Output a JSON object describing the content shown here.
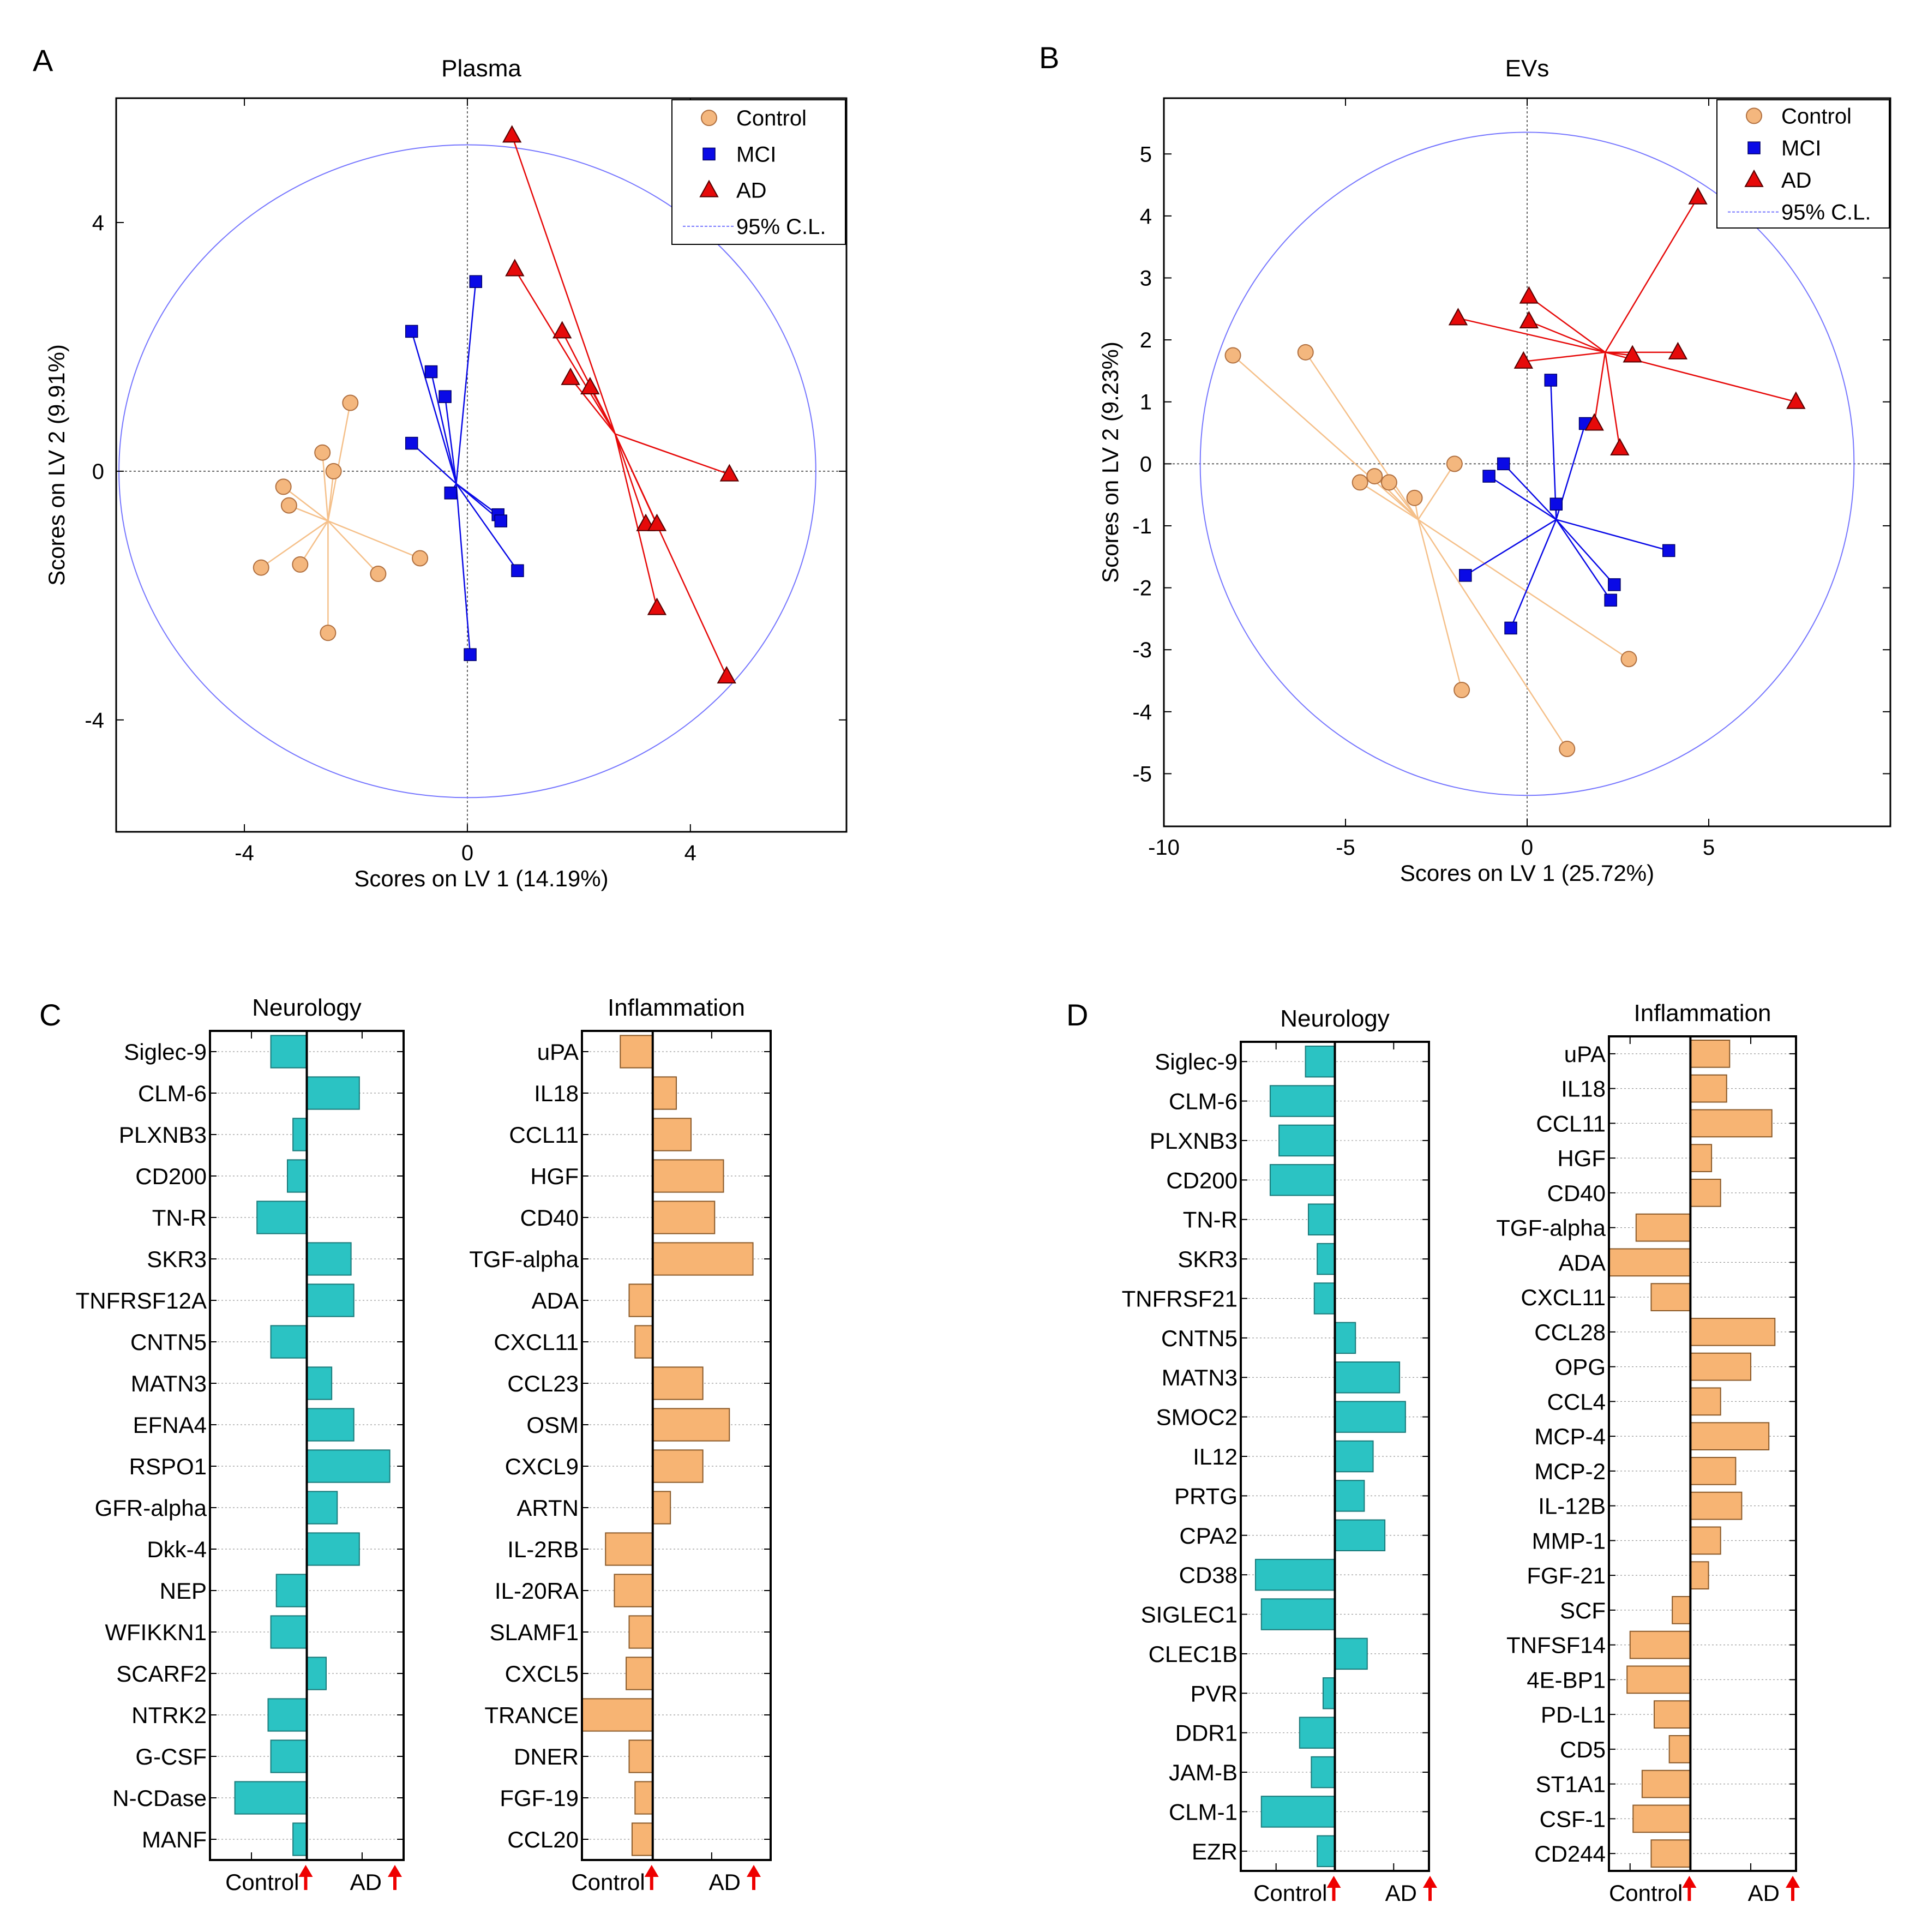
{
  "colors": {
    "control": "#F4B77E",
    "mci": "#0A0AE6",
    "ad": "#E60A0A",
    "neuro_bar": "#2BC3C3",
    "inflam_bar": "#F7B473",
    "cl": "#7777FF",
    "arrow": "#EE0000"
  },
  "chart_data": [
    {
      "panel": "A",
      "type": "scatter",
      "title": "Plasma",
      "xlabel": "Scores on LV 1 (14.19%)",
      "ylabel": "Scores on LV 2 (9.91%)",
      "xlim": [
        -6.3,
        6.8
      ],
      "ylim": [
        -5.8,
        6.0
      ],
      "xticks": [
        -4,
        0,
        4
      ],
      "xtick_labels": [
        "-4",
        "0",
        "4"
      ],
      "yticks": [
        -4,
        0,
        4
      ],
      "ytick_labels": [
        "-4",
        "0",
        "4"
      ],
      "legend": [
        "Control",
        "MCI",
        "AD",
        "95% C.L."
      ],
      "legend_position": "top-right",
      "cl_ellipse": {
        "cx": 0,
        "cy": 0,
        "rx": 6.25,
        "ry": 5.25
      },
      "series": [
        {
          "name": "Control",
          "marker": "circle",
          "centroid": [
            -2.5,
            -0.8
          ],
          "points": [
            [
              -2.1,
              1.1
            ],
            [
              -2.6,
              0.3
            ],
            [
              -2.4,
              0.0
            ],
            [
              -3.3,
              -0.25
            ],
            [
              -3.2,
              -0.55
            ],
            [
              -3.7,
              -1.55
            ],
            [
              -3.0,
              -1.5
            ],
            [
              -1.6,
              -1.65
            ],
            [
              -0.85,
              -1.4
            ],
            [
              -2.5,
              -2.6
            ]
          ]
        },
        {
          "name": "MCI",
          "marker": "square",
          "centroid": [
            -0.2,
            -0.2
          ],
          "points": [
            [
              0.15,
              3.05
            ],
            [
              -1.0,
              2.25
            ],
            [
              -0.65,
              1.6
            ],
            [
              -0.4,
              1.2
            ],
            [
              -1.0,
              0.45
            ],
            [
              -0.3,
              -0.35
            ],
            [
              0.55,
              -0.7
            ],
            [
              0.6,
              -0.8
            ],
            [
              0.9,
              -1.6
            ],
            [
              0.05,
              -2.95
            ]
          ]
        },
        {
          "name": "AD",
          "marker": "triangle",
          "centroid": [
            2.65,
            0.6
          ],
          "points": [
            [
              0.8,
              5.4
            ],
            [
              0.85,
              3.25
            ],
            [
              1.7,
              2.25
            ],
            [
              1.85,
              1.5
            ],
            [
              2.2,
              1.35
            ],
            [
              4.7,
              -0.05
            ],
            [
              3.2,
              -0.85
            ],
            [
              3.4,
              -0.85
            ],
            [
              3.4,
              -2.2
            ],
            [
              4.65,
              -3.3
            ]
          ]
        }
      ]
    },
    {
      "panel": "B",
      "type": "scatter",
      "title": "EVs",
      "xlabel": "Scores on LV 1 (25.72%)",
      "ylabel": "Scores on LV 2 (9.23%)",
      "xlim": [
        -10,
        10
      ],
      "ylim": [
        -5.85,
        5.9
      ],
      "xticks": [
        -10,
        -5,
        0,
        5
      ],
      "xtick_labels": [
        "-10",
        "-5",
        "0",
        "5"
      ],
      "yticks": [
        -5,
        -4,
        -3,
        -2,
        -1,
        0,
        1,
        2,
        3,
        4,
        5
      ],
      "ytick_labels": [
        "-5",
        "-4",
        "-3",
        "-2",
        "-1",
        "0",
        "1",
        "2",
        "3",
        "4",
        "5"
      ],
      "legend": [
        "Control",
        "MCI",
        "AD",
        "95% C.L."
      ],
      "legend_position": "top-right",
      "cl_ellipse": {
        "cx": 0,
        "cy": 0,
        "rx": 9.0,
        "ry": 5.35
      },
      "series": [
        {
          "name": "Control",
          "marker": "circle",
          "centroid": [
            -3.0,
            -0.9
          ],
          "points": [
            [
              -8.1,
              1.75
            ],
            [
              -6.1,
              1.8
            ],
            [
              -2.0,
              0.0
            ],
            [
              -4.2,
              -0.2
            ],
            [
              -4.6,
              -0.3
            ],
            [
              -3.8,
              -0.3
            ],
            [
              -3.1,
              -0.55
            ],
            [
              2.8,
              -3.15
            ],
            [
              -1.8,
              -3.65
            ],
            [
              1.1,
              -4.6
            ]
          ]
        },
        {
          "name": "MCI",
          "marker": "square",
          "centroid": [
            0.8,
            -0.9
          ],
          "points": [
            [
              0.65,
              1.35
            ],
            [
              1.6,
              0.65
            ],
            [
              -0.65,
              0.0
            ],
            [
              -1.05,
              -0.2
            ],
            [
              0.8,
              -0.65
            ],
            [
              3.9,
              -1.4
            ],
            [
              2.4,
              -1.95
            ],
            [
              2.3,
              -2.2
            ],
            [
              -1.7,
              -1.8
            ],
            [
              -0.45,
              -2.65
            ]
          ]
        },
        {
          "name": "AD",
          "marker": "triangle",
          "centroid": [
            2.15,
            1.8
          ],
          "points": [
            [
              4.7,
              4.3
            ],
            [
              0.05,
              2.7
            ],
            [
              0.05,
              2.3
            ],
            [
              -1.9,
              2.35
            ],
            [
              -0.1,
              1.65
            ],
            [
              2.9,
              1.75
            ],
            [
              4.15,
              1.8
            ],
            [
              7.4,
              1.0
            ],
            [
              1.85,
              0.65
            ],
            [
              2.55,
              0.25
            ]
          ]
        }
      ]
    },
    {
      "panel": "C",
      "type": "bar",
      "orientation": "horizontal",
      "title": "Neurology",
      "categories": [
        "Siglec-9",
        "CLM-6",
        "PLXNB3",
        "CD200",
        "TN-R",
        "SKR3",
        "TNFRSF12A",
        "CNTN5",
        "MATN3",
        "EFNA4",
        "RSPO1",
        "GFR-alpha",
        "Dkk-4",
        "NEP",
        "WFIKKN1",
        "SCARF2",
        "NTRK2",
        "G-CSF",
        "N-CDase",
        "MANF"
      ],
      "values": [
        -0.65,
        0.95,
        -0.25,
        -0.35,
        -0.9,
        0.8,
        0.85,
        -0.65,
        0.45,
        0.85,
        1.5,
        0.55,
        0.95,
        -0.55,
        -0.65,
        0.35,
        -0.7,
        -0.65,
        -1.3,
        -0.25
      ],
      "xlim": [
        -1.75,
        1.75
      ],
      "xlabel": [
        "Control",
        "AD"
      ]
    },
    {
      "panel": "C",
      "type": "bar",
      "orientation": "horizontal",
      "title": "Inflammation",
      "categories": [
        "uPA",
        "IL18",
        "CCL11",
        "HGF",
        "CD40",
        "TGF-alpha",
        "ADA",
        "CXCL11",
        "CCL23",
        "OSM",
        "CXCL9",
        "ARTN",
        "IL-2RB",
        "IL-20RA",
        "SLAMF1",
        "CXCL5",
        "TRANCE",
        "DNER",
        "FGF-19",
        "CCL20"
      ],
      "values": [
        -0.55,
        0.4,
        0.65,
        1.2,
        1.05,
        1.7,
        -0.4,
        -0.3,
        0.85,
        1.3,
        0.85,
        0.3,
        -0.8,
        -0.65,
        -0.4,
        -0.45,
        -1.2,
        -0.4,
        -0.3,
        -0.35
      ],
      "xlim": [
        -1.2,
        2.0
      ],
      "xlabel": [
        "Control",
        "AD"
      ]
    },
    {
      "panel": "D",
      "type": "bar",
      "orientation": "horizontal",
      "title": "Neurology",
      "categories": [
        "Siglec-9",
        "CLM-6",
        "PLXNB3",
        "CD200",
        "TN-R",
        "SKR3",
        "TNFRSF21",
        "CNTN5",
        "MATN3",
        "SMOC2",
        "IL12",
        "PRTG",
        "CPA2",
        "CD38",
        "SIGLEC1",
        "CLEC1B",
        "PVR",
        "DDR1",
        "JAM-B",
        "CLM-1",
        "EZR"
      ],
      "values": [
        -0.5,
        -1.1,
        -0.95,
        -1.1,
        -0.45,
        -0.3,
        -0.35,
        0.35,
        1.1,
        1.2,
        0.65,
        0.5,
        0.85,
        -1.35,
        -1.25,
        0.55,
        -0.2,
        -0.6,
        -0.4,
        -1.25,
        -0.3
      ],
      "xlim": [
        -1.6,
        1.6
      ],
      "xlabel": [
        "Control",
        "AD"
      ]
    },
    {
      "panel": "D",
      "type": "bar",
      "orientation": "horizontal",
      "title": "Inflammation",
      "categories": [
        "uPA",
        "IL18",
        "CCL11",
        "HGF",
        "CD40",
        "TGF-alpha",
        "ADA",
        "CXCL11",
        "CCL28",
        "OPG",
        "CCL4",
        "MCP-4",
        "MCP-2",
        "IL-12B",
        "MMP-1",
        "FGF-21",
        "SCF",
        "TNFSF14",
        "4E-BP1",
        "PD-L1",
        "CD5",
        "ST1A1",
        "CSF-1",
        "CD244"
      ],
      "values": [
        0.65,
        0.6,
        1.35,
        0.35,
        0.5,
        -0.9,
        -1.35,
        -0.65,
        1.4,
        1.0,
        0.5,
        1.3,
        0.75,
        0.85,
        0.5,
        0.3,
        -0.3,
        -1.0,
        -1.05,
        -0.6,
        -0.35,
        -0.8,
        -0.95,
        -0.65
      ],
      "xlim": [
        -1.35,
        1.75
      ],
      "xlabel": [
        "Control",
        "AD"
      ]
    }
  ]
}
